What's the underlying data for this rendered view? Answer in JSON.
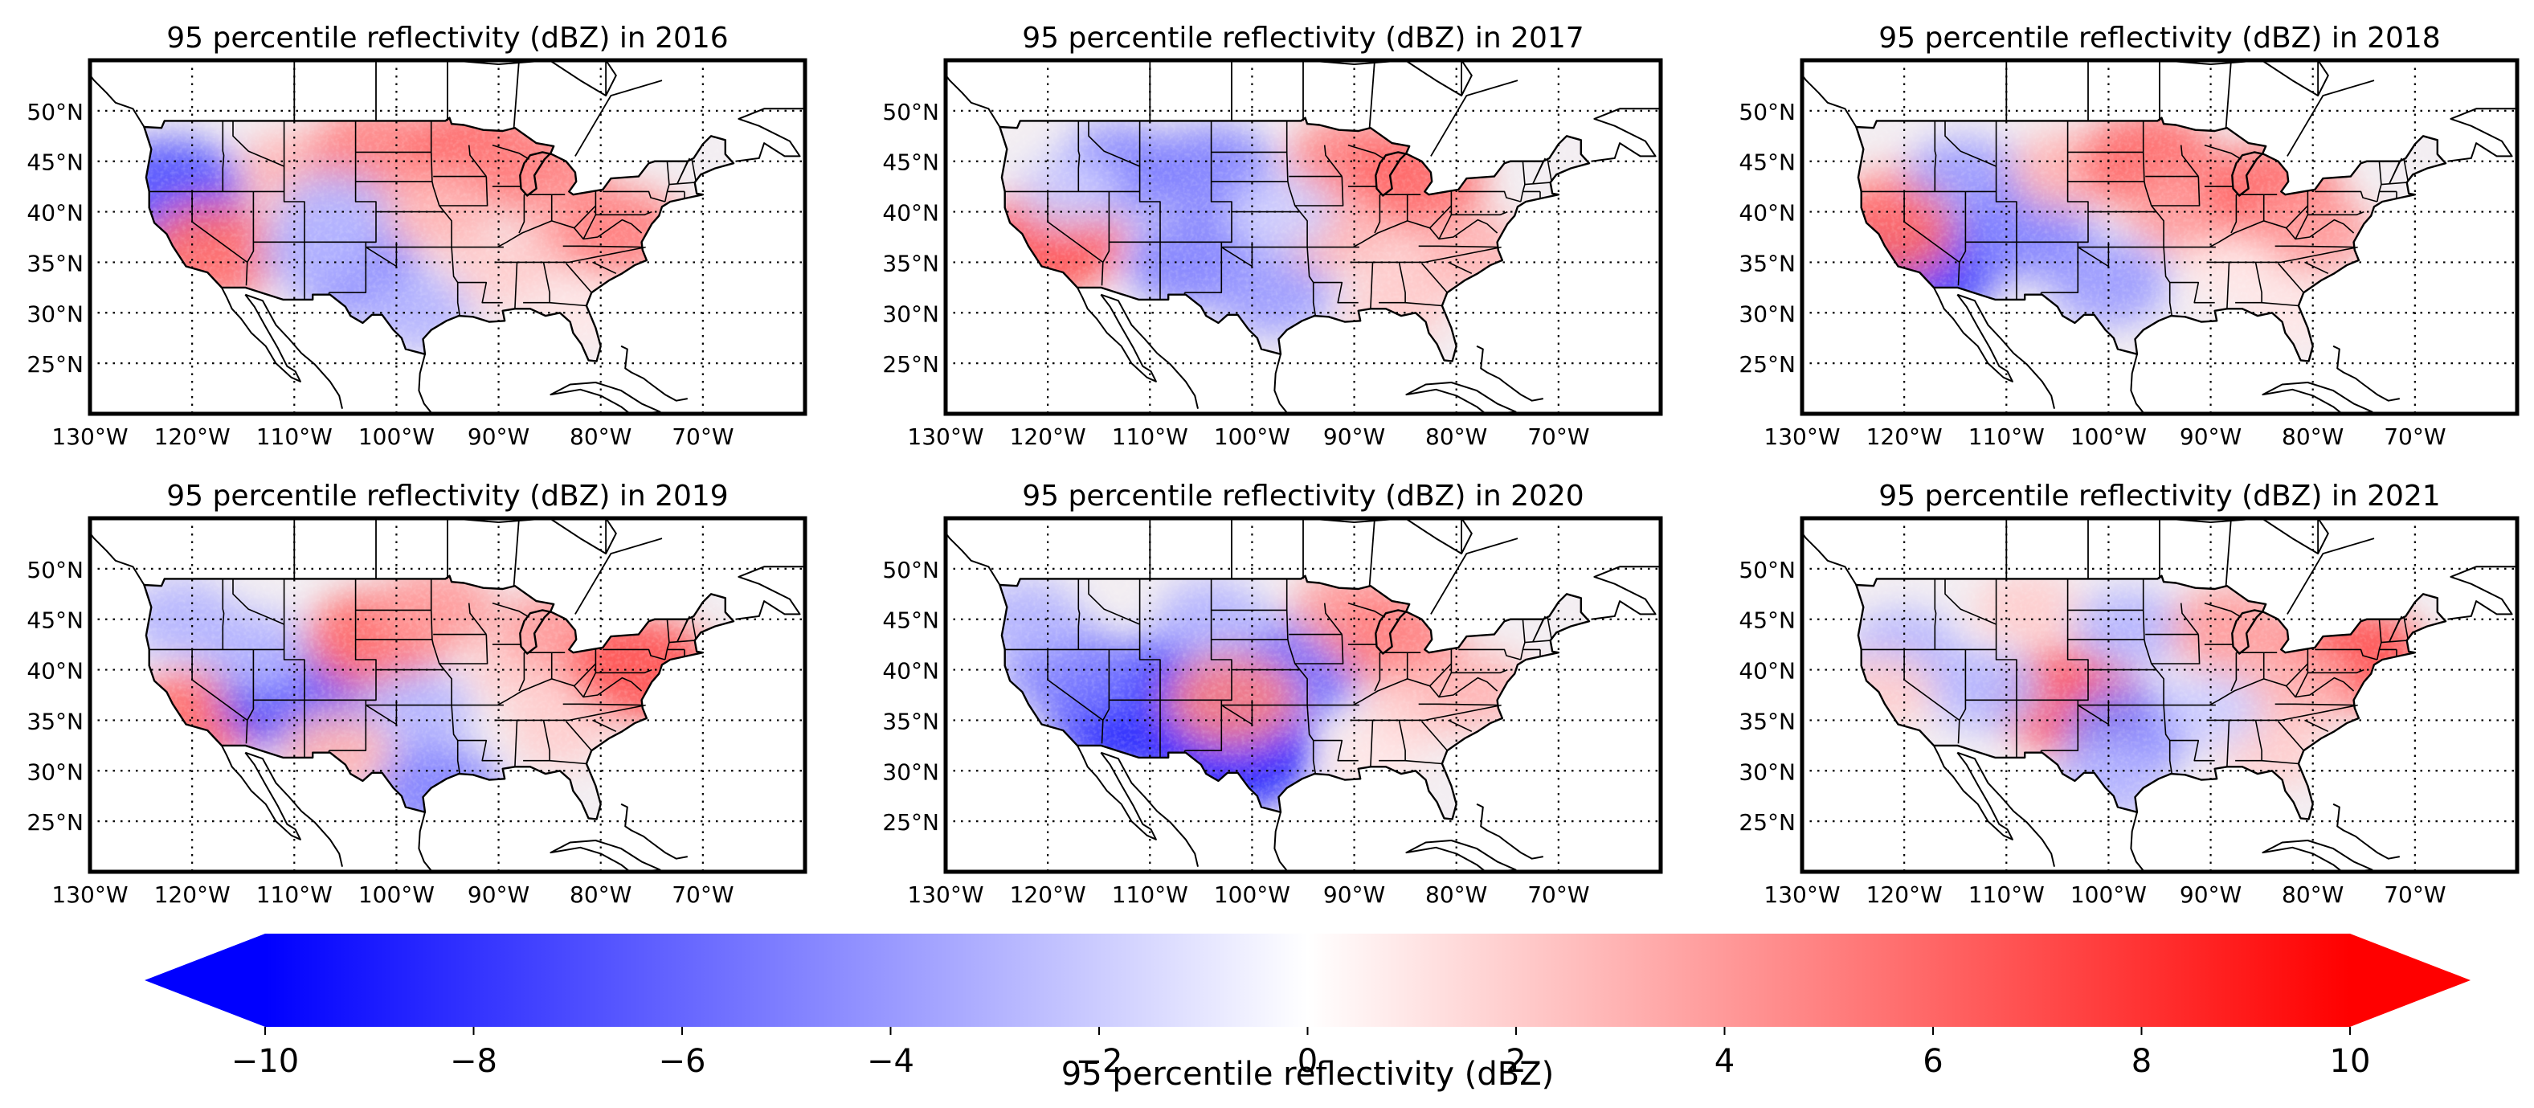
{
  "figure": {
    "panels": [
      {
        "id": "p2016",
        "title": "95 percentile reflectivity (dBZ) in 2016",
        "anomaly": [
          {
            "lon": -122,
            "lat": 42,
            "v": -7
          },
          {
            "lon": -118,
            "lat": 36,
            "v": 6
          },
          {
            "lon": -110,
            "lat": 44,
            "v": 3
          },
          {
            "lon": -102,
            "lat": 46,
            "v": 5
          },
          {
            "lon": -104,
            "lat": 34,
            "v": -5
          },
          {
            "lon": -108,
            "lat": 36,
            "v": -3
          },
          {
            "lon": -92,
            "lat": 46,
            "v": 6
          },
          {
            "lon": -86,
            "lat": 44,
            "v": 5
          },
          {
            "lon": -96,
            "lat": 40,
            "v": 3
          },
          {
            "lon": -90,
            "lat": 34,
            "v": 2
          },
          {
            "lon": -98,
            "lat": 30,
            "v": -3
          },
          {
            "lon": -82,
            "lat": 38,
            "v": 3
          },
          {
            "lon": -78,
            "lat": 38,
            "v": 5
          },
          {
            "lon": -82,
            "lat": 30,
            "v": 1
          },
          {
            "lon": -106,
            "lat": 40,
            "v": -3
          }
        ]
      },
      {
        "id": "p2017",
        "title": "95 percentile reflectivity (dBZ) in 2017",
        "anomaly": [
          {
            "lon": -120,
            "lat": 37,
            "v": 7
          },
          {
            "lon": -113,
            "lat": 44,
            "v": -5
          },
          {
            "lon": -104,
            "lat": 44,
            "v": -5
          },
          {
            "lon": -106,
            "lat": 35,
            "v": -5
          },
          {
            "lon": -98,
            "lat": 32,
            "v": -4
          },
          {
            "lon": -90,
            "lat": 45,
            "v": 5
          },
          {
            "lon": -84,
            "lat": 43,
            "v": 6
          },
          {
            "lon": -92,
            "lat": 38,
            "v": 3
          },
          {
            "lon": -84,
            "lat": 34,
            "v": 2
          },
          {
            "lon": -78,
            "lat": 36,
            "v": 3
          },
          {
            "lon": -86,
            "lat": 30,
            "v": 2
          },
          {
            "lon": -118,
            "lat": 42,
            "v": -2
          },
          {
            "lon": -97,
            "lat": 40,
            "v": -2
          }
        ]
      },
      {
        "id": "p2018",
        "title": "95 percentile reflectivity (dBZ) in 2018",
        "anomaly": [
          {
            "lon": -118,
            "lat": 35,
            "v": -8
          },
          {
            "lon": -120,
            "lat": 41,
            "v": 3
          },
          {
            "lon": -114,
            "lat": 43,
            "v": -4
          },
          {
            "lon": -108,
            "lat": 38,
            "v": -5
          },
          {
            "lon": -100,
            "lat": 33,
            "v": -4
          },
          {
            "lon": -104,
            "lat": 44,
            "v": 3
          },
          {
            "lon": -96,
            "lat": 45,
            "v": 6
          },
          {
            "lon": -92,
            "lat": 40,
            "v": 4
          },
          {
            "lon": -84,
            "lat": 42,
            "v": 6
          },
          {
            "lon": -80,
            "lat": 38,
            "v": 4
          },
          {
            "lon": -88,
            "lat": 34,
            "v": 1
          },
          {
            "lon": -82,
            "lat": 30,
            "v": 1
          },
          {
            "lon": -122,
            "lat": 38,
            "v": 6
          }
        ]
      },
      {
        "id": "p2019",
        "title": "95 percentile reflectivity (dBZ) in 2019",
        "anomaly": [
          {
            "lon": -120,
            "lat": 35,
            "v": 6
          },
          {
            "lon": -121,
            "lat": 45,
            "v": -3
          },
          {
            "lon": -110,
            "lat": 37,
            "v": -7
          },
          {
            "lon": -114,
            "lat": 42,
            "v": -3
          },
          {
            "lon": -102,
            "lat": 43,
            "v": 6
          },
          {
            "lon": -96,
            "lat": 46,
            "v": 4
          },
          {
            "lon": -98,
            "lat": 36,
            "v": -3
          },
          {
            "lon": -96,
            "lat": 28,
            "v": -5
          },
          {
            "lon": -88,
            "lat": 40,
            "v": 2
          },
          {
            "lon": -84,
            "lat": 44,
            "v": 4
          },
          {
            "lon": -76,
            "lat": 40,
            "v": 7
          },
          {
            "lon": -84,
            "lat": 34,
            "v": 2
          },
          {
            "lon": -106,
            "lat": 32,
            "v": 3
          }
        ]
      },
      {
        "id": "p2020",
        "title": "95 percentile reflectivity (dBZ) in 2020",
        "anomaly": [
          {
            "lon": -112,
            "lat": 36,
            "v": -9
          },
          {
            "lon": -102,
            "lat": 32,
            "v": -9
          },
          {
            "lon": -106,
            "lat": 39,
            "v": -7
          },
          {
            "lon": -118,
            "lat": 40,
            "v": -5
          },
          {
            "lon": -96,
            "lat": 40,
            "v": -6
          },
          {
            "lon": -104,
            "lat": 45,
            "v": -3
          },
          {
            "lon": -90,
            "lat": 46,
            "v": 4
          },
          {
            "lon": -86,
            "lat": 43,
            "v": 5
          },
          {
            "lon": -84,
            "lat": 36,
            "v": 2
          },
          {
            "lon": -78,
            "lat": 38,
            "v": 3
          },
          {
            "lon": -88,
            "lat": 31,
            "v": 1
          },
          {
            "lon": -122,
            "lat": 45,
            "v": -3
          },
          {
            "lon": -102,
            "lat": 37,
            "v": 5
          }
        ]
      },
      {
        "id": "p2021",
        "title": "95 percentile reflectivity (dBZ) in 2021",
        "anomaly": [
          {
            "lon": -104,
            "lat": 37,
            "v": 7
          },
          {
            "lon": -98,
            "lat": 34,
            "v": -5
          },
          {
            "lon": -100,
            "lat": 29,
            "v": -3
          },
          {
            "lon": -120,
            "lat": 42,
            "v": -3
          },
          {
            "lon": -112,
            "lat": 38,
            "v": -3
          },
          {
            "lon": -98,
            "lat": 44,
            "v": -3
          },
          {
            "lon": -108,
            "lat": 46,
            "v": 2
          },
          {
            "lon": -88,
            "lat": 44,
            "v": 4
          },
          {
            "lon": -76,
            "lat": 41,
            "v": 7
          },
          {
            "lon": -82,
            "lat": 38,
            "v": 3
          },
          {
            "lon": -84,
            "lat": 32,
            "v": 2
          },
          {
            "lon": -90,
            "lat": 36,
            "v": -2
          },
          {
            "lon": -122,
            "lat": 38,
            "v": 2
          }
        ]
      }
    ],
    "lat_ticks": [
      "50°N",
      "45°N",
      "40°N",
      "35°N",
      "30°N",
      "25°N"
    ],
    "lon_ticks": [
      "130°W",
      "120°W",
      "110°W",
      "100°W",
      "90°W",
      "80°W",
      "70°W"
    ]
  },
  "chart_data": {
    "type": "heatmap",
    "domain": {
      "lon": [
        -130,
        -60
      ],
      "lat": [
        20,
        55
      ]
    },
    "graticule": {
      "lon_step": 10,
      "lat_step": 5,
      "style": "dotted"
    },
    "colorbar": {
      "label": "95 percentile reflectivity (dBZ)",
      "min": -10,
      "max": 10,
      "extend": "both",
      "cmap": [
        "#0000ff",
        "#ffffff",
        "#ff0000"
      ],
      "ticks": [
        -10,
        -8,
        -6,
        -4,
        -2,
        0,
        2,
        4,
        6,
        8,
        10
      ],
      "tick_labels": [
        "−10",
        "−8",
        "−6",
        "−4",
        "−2",
        "0",
        "2",
        "4",
        "6",
        "8",
        "10"
      ]
    }
  }
}
